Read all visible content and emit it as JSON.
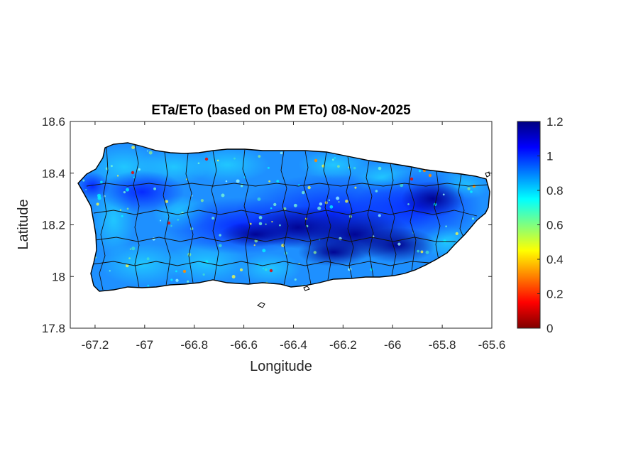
{
  "chart_data": {
    "type": "heatmap",
    "title": "ETa/ETo (based on PM ETo) 08-Nov-2025",
    "xlabel": "Longitude",
    "ylabel": "Latitude",
    "xlim": [
      -67.3,
      -65.6
    ],
    "ylim": [
      17.8,
      18.6
    ],
    "xticks": [
      -67.2,
      -67,
      -66.8,
      -66.6,
      -66.4,
      -66.2,
      -66,
      -65.8,
      -65.6
    ],
    "xtick_labels": [
      "-67.2",
      "-67",
      "-66.8",
      "-66.6",
      "-66.4",
      "-66.2",
      "-66",
      "-65.8",
      "-65.6"
    ],
    "yticks": [
      17.8,
      18,
      18.2,
      18.4,
      18.6
    ],
    "ytick_labels": [
      "17.8",
      "18",
      "18.2",
      "18.4",
      "18.6"
    ],
    "colorbar": {
      "colormap": "jet",
      "range": [
        0,
        1.2
      ],
      "ticks": [
        0,
        0.2,
        0.4,
        0.6,
        0.8,
        1,
        1.2
      ],
      "tick_labels": [
        "0",
        "0.2",
        "0.4",
        "0.6",
        "0.8",
        "1",
        "1.2"
      ],
      "placement": "right"
    },
    "grid": false,
    "pattern": "Values mostly 0.7–0.9 across the island, with a band of high values (about 1.0–1.2) along the central interior from about -66.8 to -65.8 longitude, and scattered low values (0.1–0.4) near the northern coast."
  }
}
